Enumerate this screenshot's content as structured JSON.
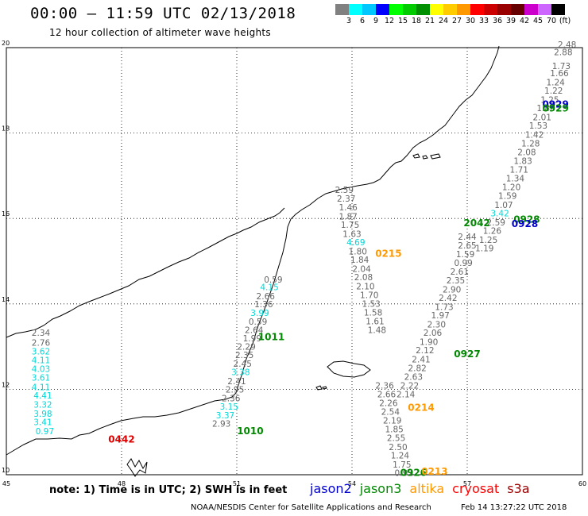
{
  "title": "00:00 – 11:59 UTC 02/13/2018",
  "subtitle": "12 hour collection of altimeter wave heights",
  "legend": {
    "colors": [
      "#808080",
      "#00ffff",
      "#00c8ff",
      "#0000ff",
      "#00ff00",
      "#00cc00",
      "#009000",
      "#ffff00",
      "#ffcc00",
      "#ff9900",
      "#ff0000",
      "#cc0000",
      "#990000",
      "#660000",
      "#cc00cc",
      "#cc66ff",
      "#000000"
    ],
    "labels": [
      "3",
      "6",
      "9",
      "12",
      "15",
      "18",
      "21",
      "24",
      "27",
      "30",
      "33",
      "36",
      "39",
      "42",
      "45",
      "70",
      "(ft)"
    ]
  },
  "map": {
    "lon_ticks": [
      "45",
      "48",
      "51",
      "54",
      "57",
      "60"
    ],
    "lat_ticks": [
      "20",
      "18",
      "16",
      "14",
      "12",
      "10"
    ]
  },
  "tracks": [
    {
      "time": "0442",
      "color": "#e00000",
      "time_lon": 48.0,
      "time_lat": 10.75,
      "points": [
        {
          "lon": 45.9,
          "lat": 13.25,
          "v": "2.34",
          "c": "#666666"
        },
        {
          "lon": 45.9,
          "lat": 13.02,
          "v": "2.76",
          "c": "#666666"
        },
        {
          "lon": 45.9,
          "lat": 12.82,
          "v": "3.62",
          "c": "#00d8d8"
        },
        {
          "lon": 45.9,
          "lat": 12.61,
          "v": "4.11",
          "c": "#00d8d8"
        },
        {
          "lon": 45.9,
          "lat": 12.41,
          "v": "4.03",
          "c": "#00d8d8"
        },
        {
          "lon": 45.9,
          "lat": 12.2,
          "v": "3.61",
          "c": "#00d8d8"
        },
        {
          "lon": 45.9,
          "lat": 11.98,
          "v": "4.11",
          "c": "#00d8d8"
        },
        {
          "lon": 45.95,
          "lat": 11.78,
          "v": "4.41",
          "c": "#00d8d8"
        },
        {
          "lon": 45.95,
          "lat": 11.57,
          "v": "3.32",
          "c": "#00d8d8"
        },
        {
          "lon": 45.95,
          "lat": 11.36,
          "v": "3.98",
          "c": "#00d8d8"
        },
        {
          "lon": 45.95,
          "lat": 11.16,
          "v": "3.41",
          "c": "#00d8d8"
        },
        {
          "lon": 46.0,
          "lat": 10.95,
          "v": "0.97",
          "c": "#00d8d8"
        }
      ]
    },
    {
      "time": "1011",
      "color": "#008800",
      "time_lon": 51.9,
      "time_lat": 13.15,
      "points": [
        {
          "lon": 51.95,
          "lat": 14.5,
          "v": "0.59",
          "c": "#666666"
        },
        {
          "lon": 51.85,
          "lat": 14.32,
          "v": "4.15",
          "c": "#00d8d8"
        },
        {
          "lon": 51.75,
          "lat": 14.11,
          "v": "2.66",
          "c": "#666666"
        },
        {
          "lon": 51.7,
          "lat": 13.92,
          "v": "1.36",
          "c": "#666666"
        },
        {
          "lon": 51.6,
          "lat": 13.72,
          "v": "3.99",
          "c": "#00d8d8"
        },
        {
          "lon": 51.55,
          "lat": 13.51,
          "v": "0.59",
          "c": "#666666"
        },
        {
          "lon": 51.45,
          "lat": 13.32,
          "v": "2.64",
          "c": "#666666"
        },
        {
          "lon": 51.4,
          "lat": 13.12,
          "v": "1.99",
          "c": "#666666"
        }
      ]
    },
    {
      "time": "1010",
      "color": "#008800",
      "time_lon": 51.35,
      "time_lat": 10.95,
      "points": [
        {
          "lon": 51.25,
          "lat": 12.93,
          "v": "2.29",
          "c": "#666666"
        },
        {
          "lon": 51.2,
          "lat": 12.73,
          "v": "2.35",
          "c": "#666666"
        },
        {
          "lon": 51.15,
          "lat": 12.53,
          "v": "2.45",
          "c": "#666666"
        },
        {
          "lon": 51.1,
          "lat": 12.33,
          "v": "3.38",
          "c": "#00d8d8"
        },
        {
          "lon": 51.0,
          "lat": 12.12,
          "v": "2.41",
          "c": "#666666"
        },
        {
          "lon": 50.95,
          "lat": 11.92,
          "v": "2.95",
          "c": "#666666"
        },
        {
          "lon": 50.85,
          "lat": 11.72,
          "v": "2.36",
          "c": "#666666"
        },
        {
          "lon": 50.8,
          "lat": 11.52,
          "v": "3.15",
          "c": "#00d8d8"
        },
        {
          "lon": 50.7,
          "lat": 11.32,
          "v": "3.37",
          "c": "#00d8d8"
        },
        {
          "lon": 50.6,
          "lat": 11.12,
          "v": "2.93",
          "c": "#666666"
        }
      ]
    },
    {
      "time": "0215",
      "color": "#ff9900",
      "time_lon": 54.95,
      "time_lat": 15.1,
      "points": [
        {
          "lon": 53.8,
          "lat": 16.6,
          "v": "2.59",
          "c": "#666666"
        },
        {
          "lon": 53.85,
          "lat": 16.39,
          "v": "2.37",
          "c": "#666666"
        },
        {
          "lon": 53.9,
          "lat": 16.19,
          "v": "1.46",
          "c": "#666666"
        },
        {
          "lon": 53.9,
          "lat": 15.98,
          "v": "1.87",
          "c": "#666666"
        },
        {
          "lon": 53.95,
          "lat": 15.78,
          "v": "1.75",
          "c": "#666666"
        },
        {
          "lon": 54.0,
          "lat": 15.57,
          "v": "1.63",
          "c": "#666666"
        },
        {
          "lon": 54.1,
          "lat": 15.37,
          "v": "4.69",
          "c": "#00d8d8"
        },
        {
          "lon": 54.15,
          "lat": 15.16,
          "v": "1.80",
          "c": "#666666"
        },
        {
          "lon": 54.2,
          "lat": 14.96,
          "v": "1.84",
          "c": "#666666"
        },
        {
          "lon": 54.25,
          "lat": 14.75,
          "v": "2.04",
          "c": "#666666"
        },
        {
          "lon": 54.3,
          "lat": 14.55,
          "v": "2.08",
          "c": "#666666"
        },
        {
          "lon": 54.35,
          "lat": 14.34,
          "v": "2.10",
          "c": "#666666"
        },
        {
          "lon": 54.45,
          "lat": 14.14,
          "v": "1.70",
          "c": "#666666"
        },
        {
          "lon": 54.5,
          "lat": 13.93,
          "v": "1.53",
          "c": "#666666"
        },
        {
          "lon": 54.55,
          "lat": 13.73,
          "v": "1.58",
          "c": "#666666"
        },
        {
          "lon": 54.6,
          "lat": 13.52,
          "v": "1.61",
          "c": "#666666"
        },
        {
          "lon": 54.65,
          "lat": 13.32,
          "v": "1.48",
          "c": "#666666"
        }
      ]
    },
    {
      "time": "0214",
      "color": "#ff9900",
      "time_lon": 55.8,
      "time_lat": 11.5,
      "points": [
        {
          "lon": 54.85,
          "lat": 12.02,
          "v": "2.36",
          "c": "#666666"
        },
        {
          "lon": 54.9,
          "lat": 11.81,
          "v": "2.66",
          "c": "#666666"
        },
        {
          "lon": 54.95,
          "lat": 11.61,
          "v": "2.26",
          "c": "#666666"
        },
        {
          "lon": 55.0,
          "lat": 11.4,
          "v": "2.54",
          "c": "#666666"
        },
        {
          "lon": 55.05,
          "lat": 11.2,
          "v": "2.19",
          "c": "#666666"
        },
        {
          "lon": 55.1,
          "lat": 10.99,
          "v": "1.85",
          "c": "#666666"
        },
        {
          "lon": 55.15,
          "lat": 10.79,
          "v": "2.55",
          "c": "#666666"
        },
        {
          "lon": 55.2,
          "lat": 10.58,
          "v": "2.50",
          "c": "#666666"
        },
        {
          "lon": 55.25,
          "lat": 10.38,
          "v": "1.24",
          "c": "#666666"
        },
        {
          "lon": 55.3,
          "lat": 10.17,
          "v": "1.75",
          "c": "#666666"
        },
        {
          "lon": 55.35,
          "lat": 9.97,
          "v": "0.92",
          "c": "#666666"
        }
      ]
    },
    {
      "time": "0927",
      "color": "#008800",
      "time_lon": 57.0,
      "time_lat": 12.75,
      "points": [
        {
          "lon": 57.0,
          "lat": 15.5,
          "v": "2.44",
          "c": "#666666"
        },
        {
          "lon": 57.0,
          "lat": 15.3,
          "v": "2.65",
          "c": "#666666"
        },
        {
          "lon": 56.95,
          "lat": 15.09,
          "v": "1.59",
          "c": "#666666"
        },
        {
          "lon": 56.9,
          "lat": 14.89,
          "v": "0.99",
          "c": "#666666"
        },
        {
          "lon": 56.8,
          "lat": 14.68,
          "v": "2.61",
          "c": "#666666"
        },
        {
          "lon": 56.7,
          "lat": 14.48,
          "v": "2.35",
          "c": "#666666"
        },
        {
          "lon": 56.6,
          "lat": 14.27,
          "v": "2.90",
          "c": "#666666"
        },
        {
          "lon": 56.5,
          "lat": 14.07,
          "v": "2.42",
          "c": "#666666"
        },
        {
          "lon": 56.4,
          "lat": 13.86,
          "v": "1.73",
          "c": "#666666"
        },
        {
          "lon": 56.3,
          "lat": 13.66,
          "v": "1.97",
          "c": "#666666"
        },
        {
          "lon": 56.2,
          "lat": 13.45,
          "v": "2.30",
          "c": "#666666"
        },
        {
          "lon": 56.1,
          "lat": 13.25,
          "v": "2.06",
          "c": "#666666"
        },
        {
          "lon": 56.0,
          "lat": 13.04,
          "v": "1.90",
          "c": "#666666"
        },
        {
          "lon": 55.9,
          "lat": 12.84,
          "v": "2.12",
          "c": "#666666"
        },
        {
          "lon": 55.8,
          "lat": 12.63,
          "v": "2.41",
          "c": "#666666"
        },
        {
          "lon": 55.7,
          "lat": 12.43,
          "v": "2.82",
          "c": "#666666"
        },
        {
          "lon": 55.6,
          "lat": 12.22,
          "v": "2.63",
          "c": "#666666"
        },
        {
          "lon": 55.5,
          "lat": 12.02,
          "v": "2.22",
          "c": "#666666"
        },
        {
          "lon": 55.4,
          "lat": 11.81,
          "v": "2.14",
          "c": "#666666"
        }
      ]
    },
    {
      "time": "0926",
      "color": "#008800",
      "time_lon": 55.6,
      "time_lat": 9.97,
      "points": []
    },
    {
      "time": "0213",
      "color": "#ff9900",
      "time_lon": 56.15,
      "time_lat": 10.0,
      "points": []
    },
    {
      "time": "0929",
      "color": "#0000cc",
      "time_lon": 59.3,
      "time_lat": 18.6,
      "points": [
        {
          "lon": 59.6,
          "lat": 20.0,
          "v": "2.48",
          "c": "#666666"
        },
        {
          "lon": 59.5,
          "lat": 19.82,
          "v": "2.88",
          "c": "#666666"
        },
        {
          "lon": 59.45,
          "lat": 19.5,
          "v": "1.73",
          "c": "#666666"
        },
        {
          "lon": 59.4,
          "lat": 19.33,
          "v": "1.66",
          "c": "#666666"
        },
        {
          "lon": 59.3,
          "lat": 19.12,
          "v": "1.24",
          "c": "#666666"
        },
        {
          "lon": 59.25,
          "lat": 18.92,
          "v": "1.22",
          "c": "#666666"
        },
        {
          "lon": 59.15,
          "lat": 18.71,
          "v": "1.25",
          "c": "#666666"
        },
        {
          "lon": 59.05,
          "lat": 18.51,
          "v": "1.86",
          "c": "#666666"
        },
        {
          "lon": 58.95,
          "lat": 18.3,
          "v": "2.01",
          "c": "#666666"
        },
        {
          "lon": 58.85,
          "lat": 18.1,
          "v": "1.53",
          "c": "#666666"
        },
        {
          "lon": 58.75,
          "lat": 17.89,
          "v": "1.42",
          "c": "#666666"
        },
        {
          "lon": 58.65,
          "lat": 17.69,
          "v": "1.28",
          "c": "#666666"
        },
        {
          "lon": 58.55,
          "lat": 17.48,
          "v": "2.08",
          "c": "#666666"
        },
        {
          "lon": 58.45,
          "lat": 17.28,
          "v": "1.83",
          "c": "#666666"
        },
        {
          "lon": 58.35,
          "lat": 17.07,
          "v": "1.71",
          "c": "#666666"
        },
        {
          "lon": 58.25,
          "lat": 16.87,
          "v": "1.34",
          "c": "#666666"
        },
        {
          "lon": 58.15,
          "lat": 16.66,
          "v": "1.20",
          "c": "#666666"
        },
        {
          "lon": 58.05,
          "lat": 16.46,
          "v": "1.59",
          "c": "#666666"
        },
        {
          "lon": 57.95,
          "lat": 16.25,
          "v": "1.07",
          "c": "#666666"
        },
        {
          "lon": 57.85,
          "lat": 16.05,
          "v": "3.42",
          "c": "#00d8d8"
        },
        {
          "lon": 57.75,
          "lat": 15.84,
          "v": "2.59",
          "c": "#666666"
        },
        {
          "lon": 57.65,
          "lat": 15.64,
          "v": "1.26",
          "c": "#666666"
        },
        {
          "lon": 57.55,
          "lat": 15.43,
          "v": "1.25",
          "c": "#666666"
        },
        {
          "lon": 57.45,
          "lat": 15.23,
          "v": "1.19",
          "c": "#666666"
        }
      ]
    },
    {
      "time": "0929",
      "color": "#008800",
      "time_lon": 59.3,
      "time_lat": 18.5,
      "points": []
    },
    {
      "time": "0928",
      "color": "#008800",
      "time_lon": 58.55,
      "time_lat": 15.9,
      "points": []
    },
    {
      "time": "0928",
      "color": "#0000cc",
      "time_lon": 58.5,
      "time_lat": 15.8,
      "points": []
    },
    {
      "time": "2042",
      "color": "#008800",
      "time_lon": 57.25,
      "time_lat": 15.82,
      "points": []
    }
  ],
  "note": "note:  1) Time is in UTC;  2) SWH is in feet",
  "satellites": [
    {
      "name": "jason2",
      "color": "#0000cc"
    },
    {
      "name": "jason3",
      "color": "#008800"
    },
    {
      "name": "altika",
      "color": "#ff9900"
    },
    {
      "name": "cryosat",
      "color": "#ff0000"
    },
    {
      "name": "s3a",
      "color": "#990000"
    }
  ],
  "credit": "NOAA/NESDIS Center for Satellite Applications and Research",
  "timestamp": "Feb 14 13:27:22 UTC 2018"
}
